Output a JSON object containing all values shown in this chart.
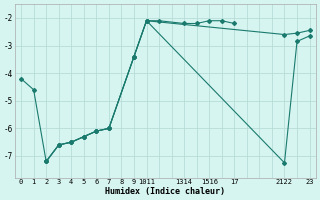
{
  "line1_x": [
    0,
    1,
    2,
    3,
    4,
    5,
    6,
    7,
    9,
    10,
    11,
    13,
    14,
    15,
    16,
    17
  ],
  "line1_y": [
    -4.2,
    -4.6,
    -7.2,
    -6.6,
    -6.5,
    -6.3,
    -6.1,
    -6.0,
    -3.4,
    -2.1,
    -2.1,
    -2.2,
    -2.2,
    -2.1,
    -2.1,
    -2.2
  ],
  "line2_x": [
    2,
    3,
    4,
    5,
    6,
    7,
    9,
    10,
    21,
    22,
    23
  ],
  "line2_y": [
    -7.2,
    -6.6,
    -6.5,
    -6.3,
    -6.1,
    -6.0,
    -3.4,
    -2.1,
    -2.6,
    -2.55,
    -2.45
  ],
  "line3_x": [
    2,
    3,
    4,
    5,
    6,
    7,
    9,
    10,
    21,
    22,
    23
  ],
  "line3_y": [
    -7.2,
    -6.6,
    -6.5,
    -6.3,
    -6.1,
    -6.0,
    -3.4,
    -2.1,
    -7.25,
    -2.85,
    -2.65
  ],
  "color": "#1a7a6e",
  "bg_color": "#d6f5f0",
  "grid_color": "#b8dcd8",
  "xlabel": "Humidex (Indice chaleur)",
  "xlim": [
    -0.5,
    23.5
  ],
  "ylim": [
    -7.8,
    -1.5
  ],
  "xticks": [
    0,
    1,
    2,
    3,
    4,
    5,
    6,
    7,
    8,
    9,
    10,
    11,
    13,
    14,
    15,
    16,
    17,
    21,
    22,
    23
  ],
  "xtick_labels": [
    "0",
    "1",
    "2",
    "3",
    "4",
    "5",
    "6",
    "7",
    "8",
    "9",
    "1011",
    "",
    "1314",
    "",
    "1516",
    "",
    "17",
    "",
    "2122",
    "23"
  ],
  "yticks": [
    -7,
    -6,
    -5,
    -4,
    -3,
    -2
  ],
  "ytick_labels": [
    "-7",
    "-6",
    "-5",
    "-4",
    "-3",
    "-2"
  ]
}
